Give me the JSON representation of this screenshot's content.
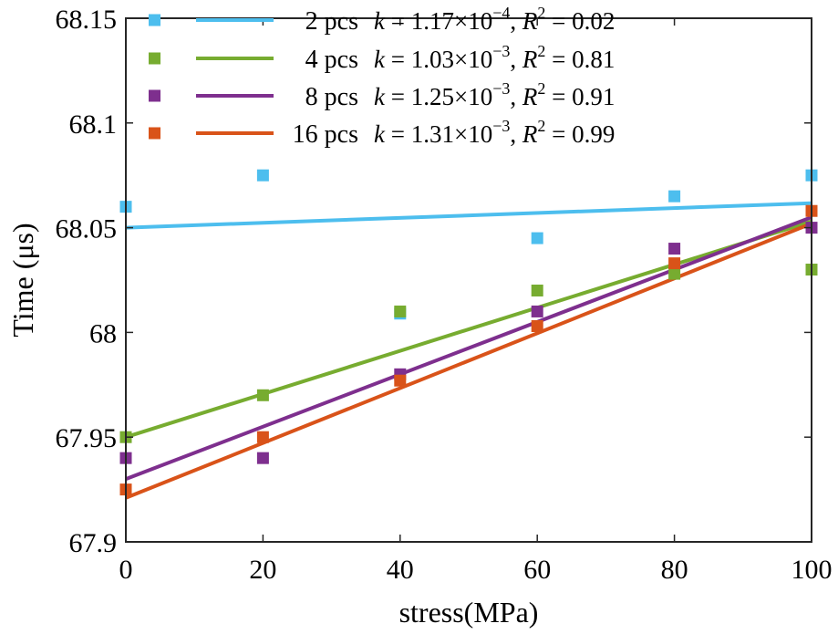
{
  "chart_data": {
    "type": "scatter",
    "title": "",
    "xlabel": "stress(MPa)",
    "ylabel": "Time (μs)",
    "xlim": [
      0,
      100
    ],
    "ylim": [
      67.9,
      68.15
    ],
    "x_ticks": [
      "0",
      "20",
      "40",
      "60",
      "80",
      "100"
    ],
    "y_ticks": [
      "67.9",
      "67.95",
      "68",
      "68.05",
      "68.1",
      "68.15"
    ],
    "grid": false,
    "legend_position": "top",
    "x": [
      0,
      20,
      40,
      60,
      80,
      100
    ],
    "series": [
      {
        "name": "2 pcs",
        "color": "#4DBEEE",
        "values": [
          68.06,
          68.075,
          68.009,
          68.045,
          68.065,
          68.075
        ],
        "fit": {
          "slope": 0.000117,
          "intercept": 68.05
        },
        "k_mantissa": "1.17",
        "k_exponent": "−4",
        "r2": "0.02"
      },
      {
        "name": "4 pcs",
        "color": "#77AC30",
        "values": [
          67.95,
          67.97,
          68.01,
          68.02,
          68.028,
          68.03
        ],
        "fit": {
          "slope": 0.00103,
          "intercept": 67.95
        },
        "k_mantissa": "1.03",
        "k_exponent": "−3",
        "r2": "0.81"
      },
      {
        "name": "8 pcs",
        "color": "#7E2F8E",
        "values": [
          67.94,
          67.94,
          67.98,
          68.01,
          68.04,
          68.05
        ],
        "fit": {
          "slope": 0.00125,
          "intercept": 67.93
        },
        "k_mantissa": "1.25",
        "k_exponent": "−3",
        "r2": "0.91"
      },
      {
        "name": "16 pcs",
        "color": "#D95319",
        "values": [
          67.925,
          67.95,
          67.977,
          68.003,
          68.033,
          68.058
        ],
        "fit": {
          "slope": 0.00131,
          "intercept": 67.921
        },
        "k_mantissa": "1.31",
        "k_exponent": "−3",
        "r2": "0.99"
      }
    ]
  }
}
